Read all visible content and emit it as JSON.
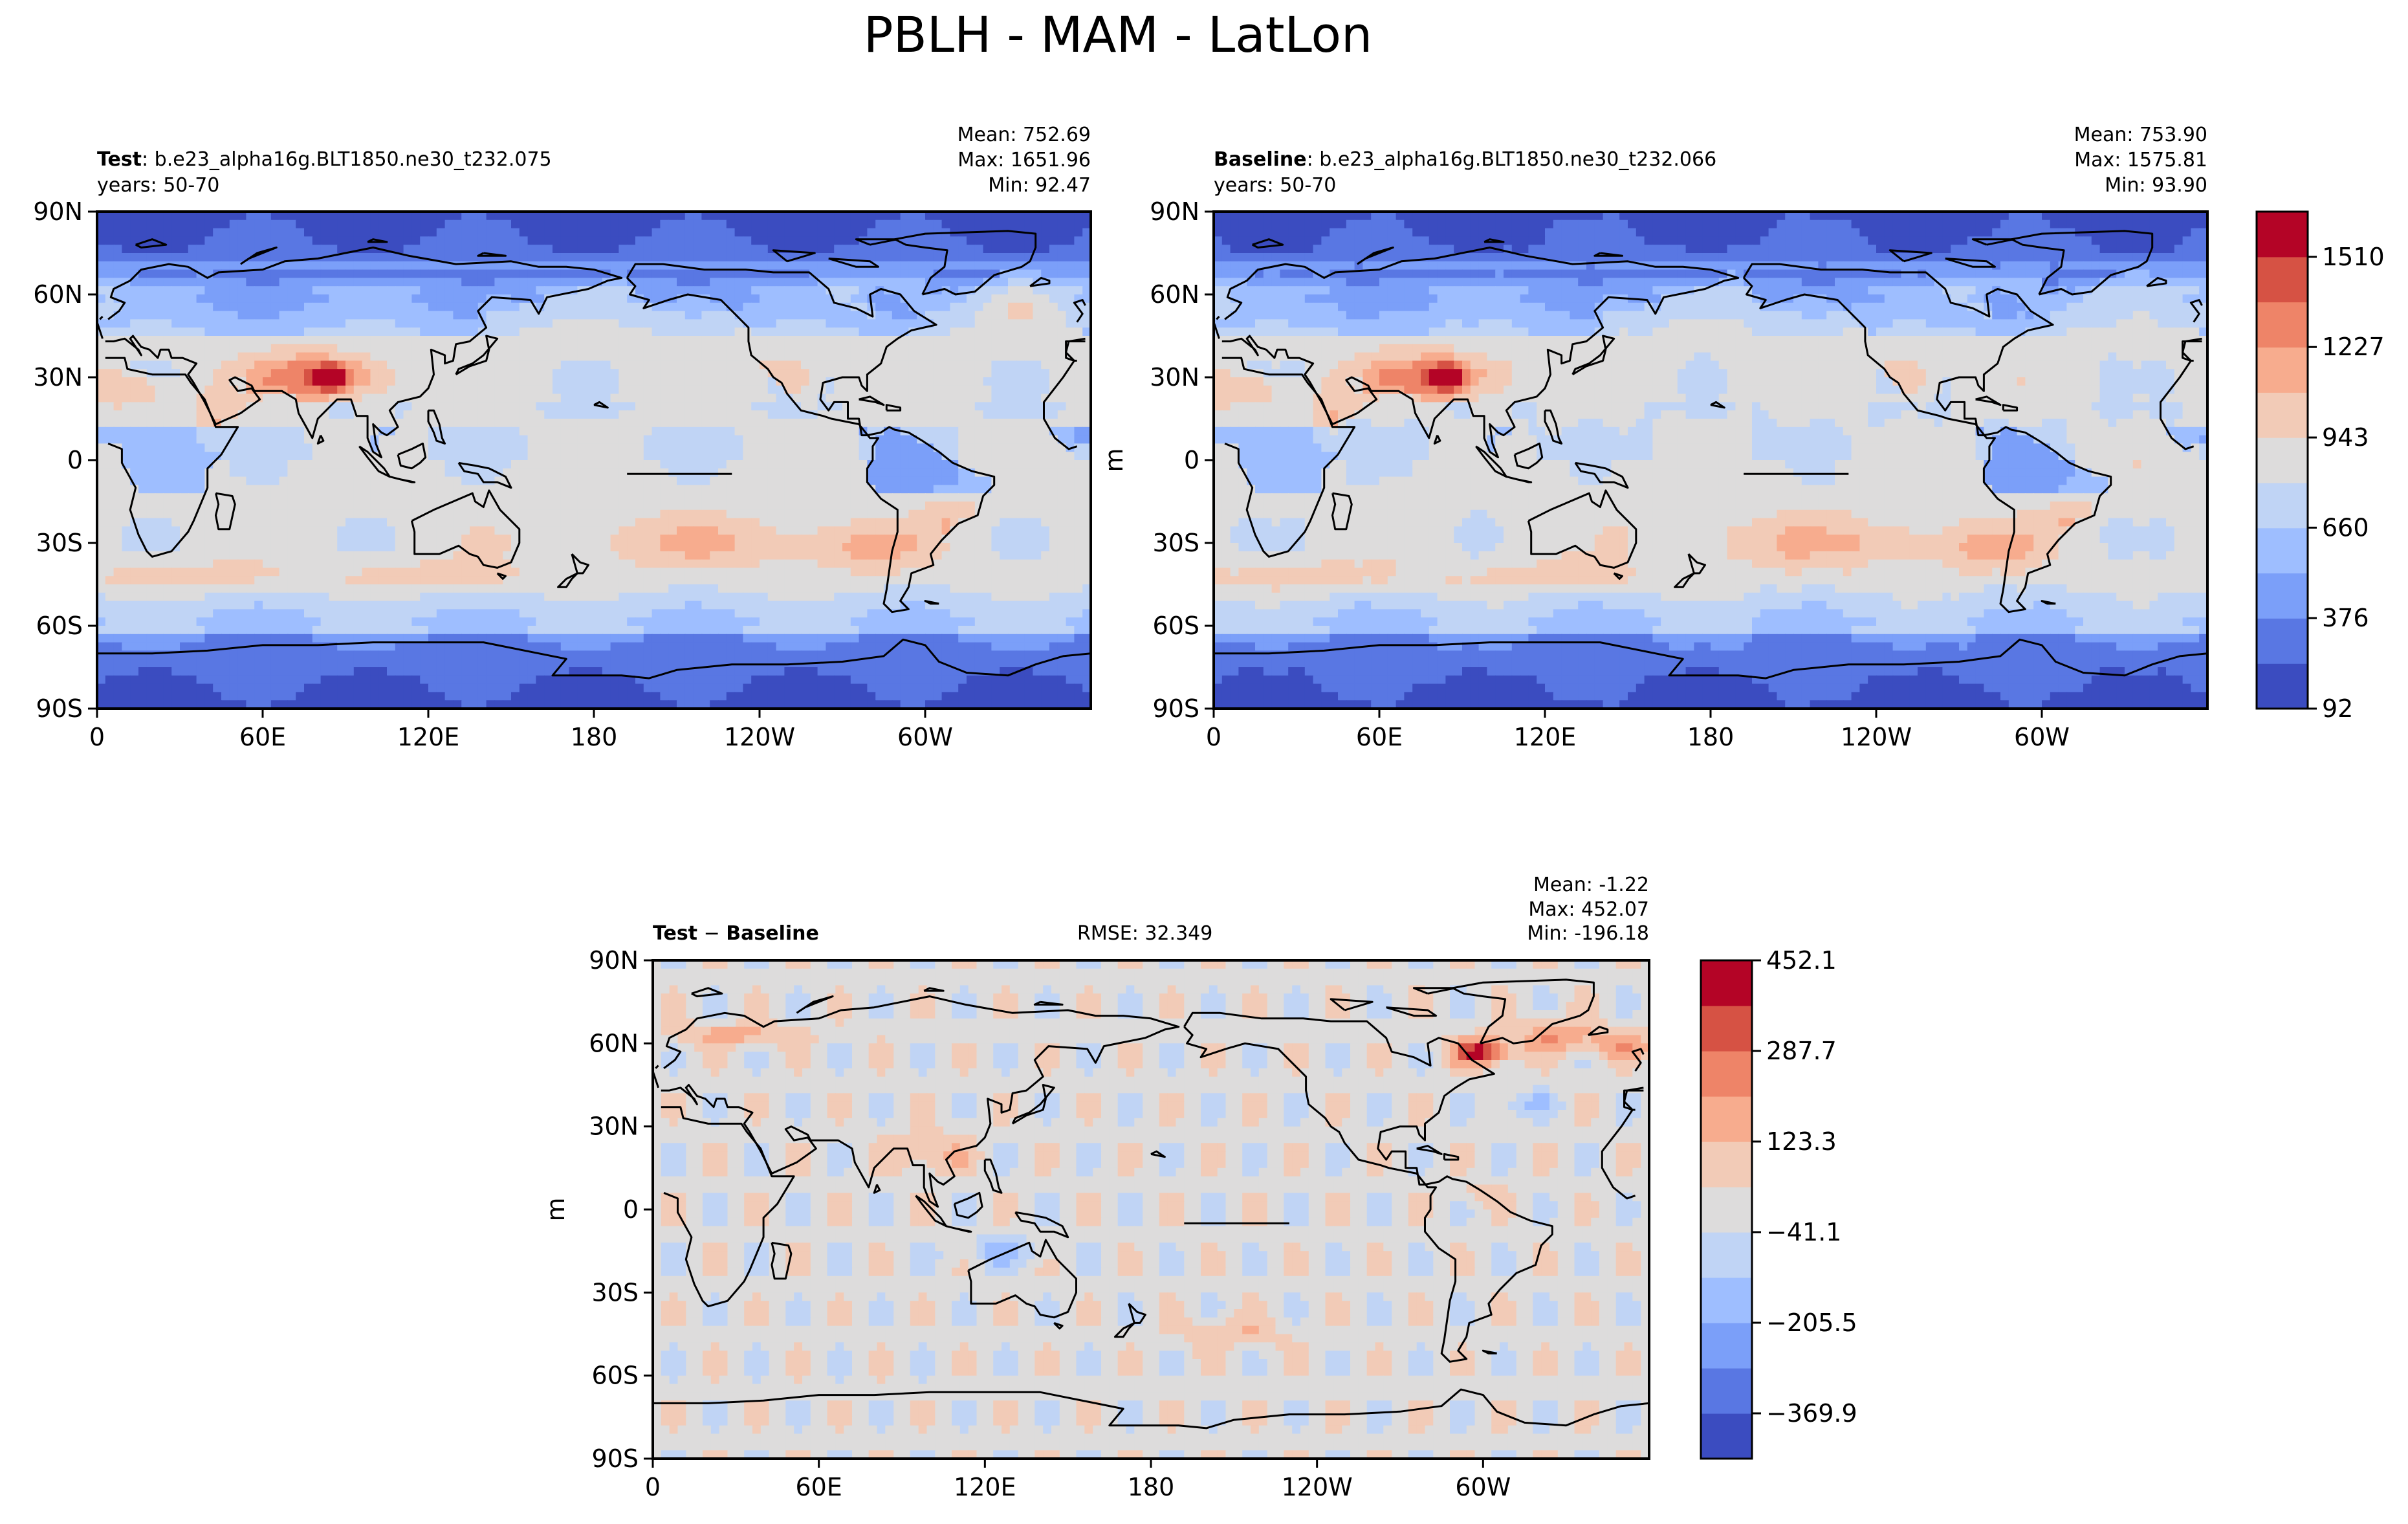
{
  "figure": {
    "title": "PBLH - MAM - LatLon"
  },
  "chart_data": [
    {
      "type": "heatmap",
      "id": "test",
      "label_bold": "Test",
      "label_rest": ": b.e23_alpha16g.BLT1850.ne30_t232.075",
      "years": "years: 50-70",
      "stats": [
        "Mean: 752.69",
        "Max: 1651.96",
        "Min: 92.47"
      ],
      "xticks": [
        "0",
        "60E",
        "120E",
        "180",
        "120W",
        "60W"
      ],
      "xtick_lons": [
        0,
        60,
        120,
        180,
        240,
        300
      ],
      "yticks": [
        "90N",
        "60N",
        "30N",
        "0",
        "30S",
        "60S",
        "90S"
      ],
      "ytick_lats": [
        90,
        60,
        30,
        0,
        -30,
        -60,
        -90
      ],
      "xlim": [
        0,
        360
      ],
      "ylim": [
        -90,
        90
      ],
      "ylabel": "",
      "field": "test"
    },
    {
      "type": "heatmap",
      "id": "baseline",
      "label_bold": "Baseline",
      "label_rest": ": b.e23_alpha16g.BLT1850.ne30_t232.066",
      "years": "years: 50-70",
      "stats": [
        "Mean: 753.90",
        "Max: 1575.81",
        "Min: 93.90"
      ],
      "xticks": [
        "0",
        "60E",
        "120E",
        "180",
        "120W",
        "60W"
      ],
      "xtick_lons": [
        0,
        60,
        120,
        180,
        240,
        300
      ],
      "yticks": [
        "90N",
        "60N",
        "30N",
        "0",
        "30S",
        "60S",
        "90S"
      ],
      "ytick_lats": [
        90,
        60,
        30,
        0,
        -30,
        -60,
        -90
      ],
      "xlim": [
        0,
        360
      ],
      "ylim": [
        -90,
        90
      ],
      "ylabel": "m",
      "field": "baseline",
      "colorbar": {
        "min": 92,
        "max": 1651.96,
        "ticks": [
          92,
          376,
          660,
          943,
          1227,
          1510
        ],
        "tick_labels": [
          "92",
          "376",
          "660",
          "943",
          "1227",
          "1510"
        ],
        "colors": [
          "#3b4cc0",
          "#5977e3",
          "#7b9ff9",
          "#9ebeff",
          "#c0d4f5",
          "#dddcdc",
          "#f2cbb7",
          "#f7ac8e",
          "#ee8468",
          "#d65244",
          "#b40426"
        ]
      }
    },
    {
      "type": "heatmap",
      "id": "diff",
      "label_bold_a": "Test",
      "label_minus": " − ",
      "label_bold_b": "Baseline",
      "rmse": "RMSE: 32.349",
      "stats": [
        "Mean: -1.22",
        "Max: 452.07",
        "Min: -196.18"
      ],
      "xticks": [
        "0",
        "60E",
        "120E",
        "180",
        "120W",
        "60W"
      ],
      "xtick_lons": [
        0,
        60,
        120,
        180,
        240,
        300
      ],
      "yticks": [
        "90N",
        "60N",
        "30N",
        "0",
        "30S",
        "60S",
        "90S"
      ],
      "ytick_lats": [
        90,
        60,
        30,
        0,
        -30,
        -60,
        -90
      ],
      "xlim": [
        0,
        360
      ],
      "ylim": [
        -90,
        90
      ],
      "ylabel": "m",
      "field": "diff",
      "colorbar": {
        "min": -452.1,
        "max": 452.1,
        "ticks": [
          -369.9,
          -205.5,
          -41.1,
          123.3,
          287.7,
          452.1
        ],
        "tick_labels": [
          "−369.9",
          "−205.5",
          "−41.1",
          "123.3",
          "287.7",
          "452.1"
        ],
        "colors": [
          "#3b4cc0",
          "#5977e3",
          "#7b9ff9",
          "#9ebeff",
          "#c0d4f5",
          "#dddcdc",
          "#f2cbb7",
          "#f7ac8e",
          "#ee8468",
          "#d65244",
          "#b40426"
        ]
      }
    }
  ]
}
